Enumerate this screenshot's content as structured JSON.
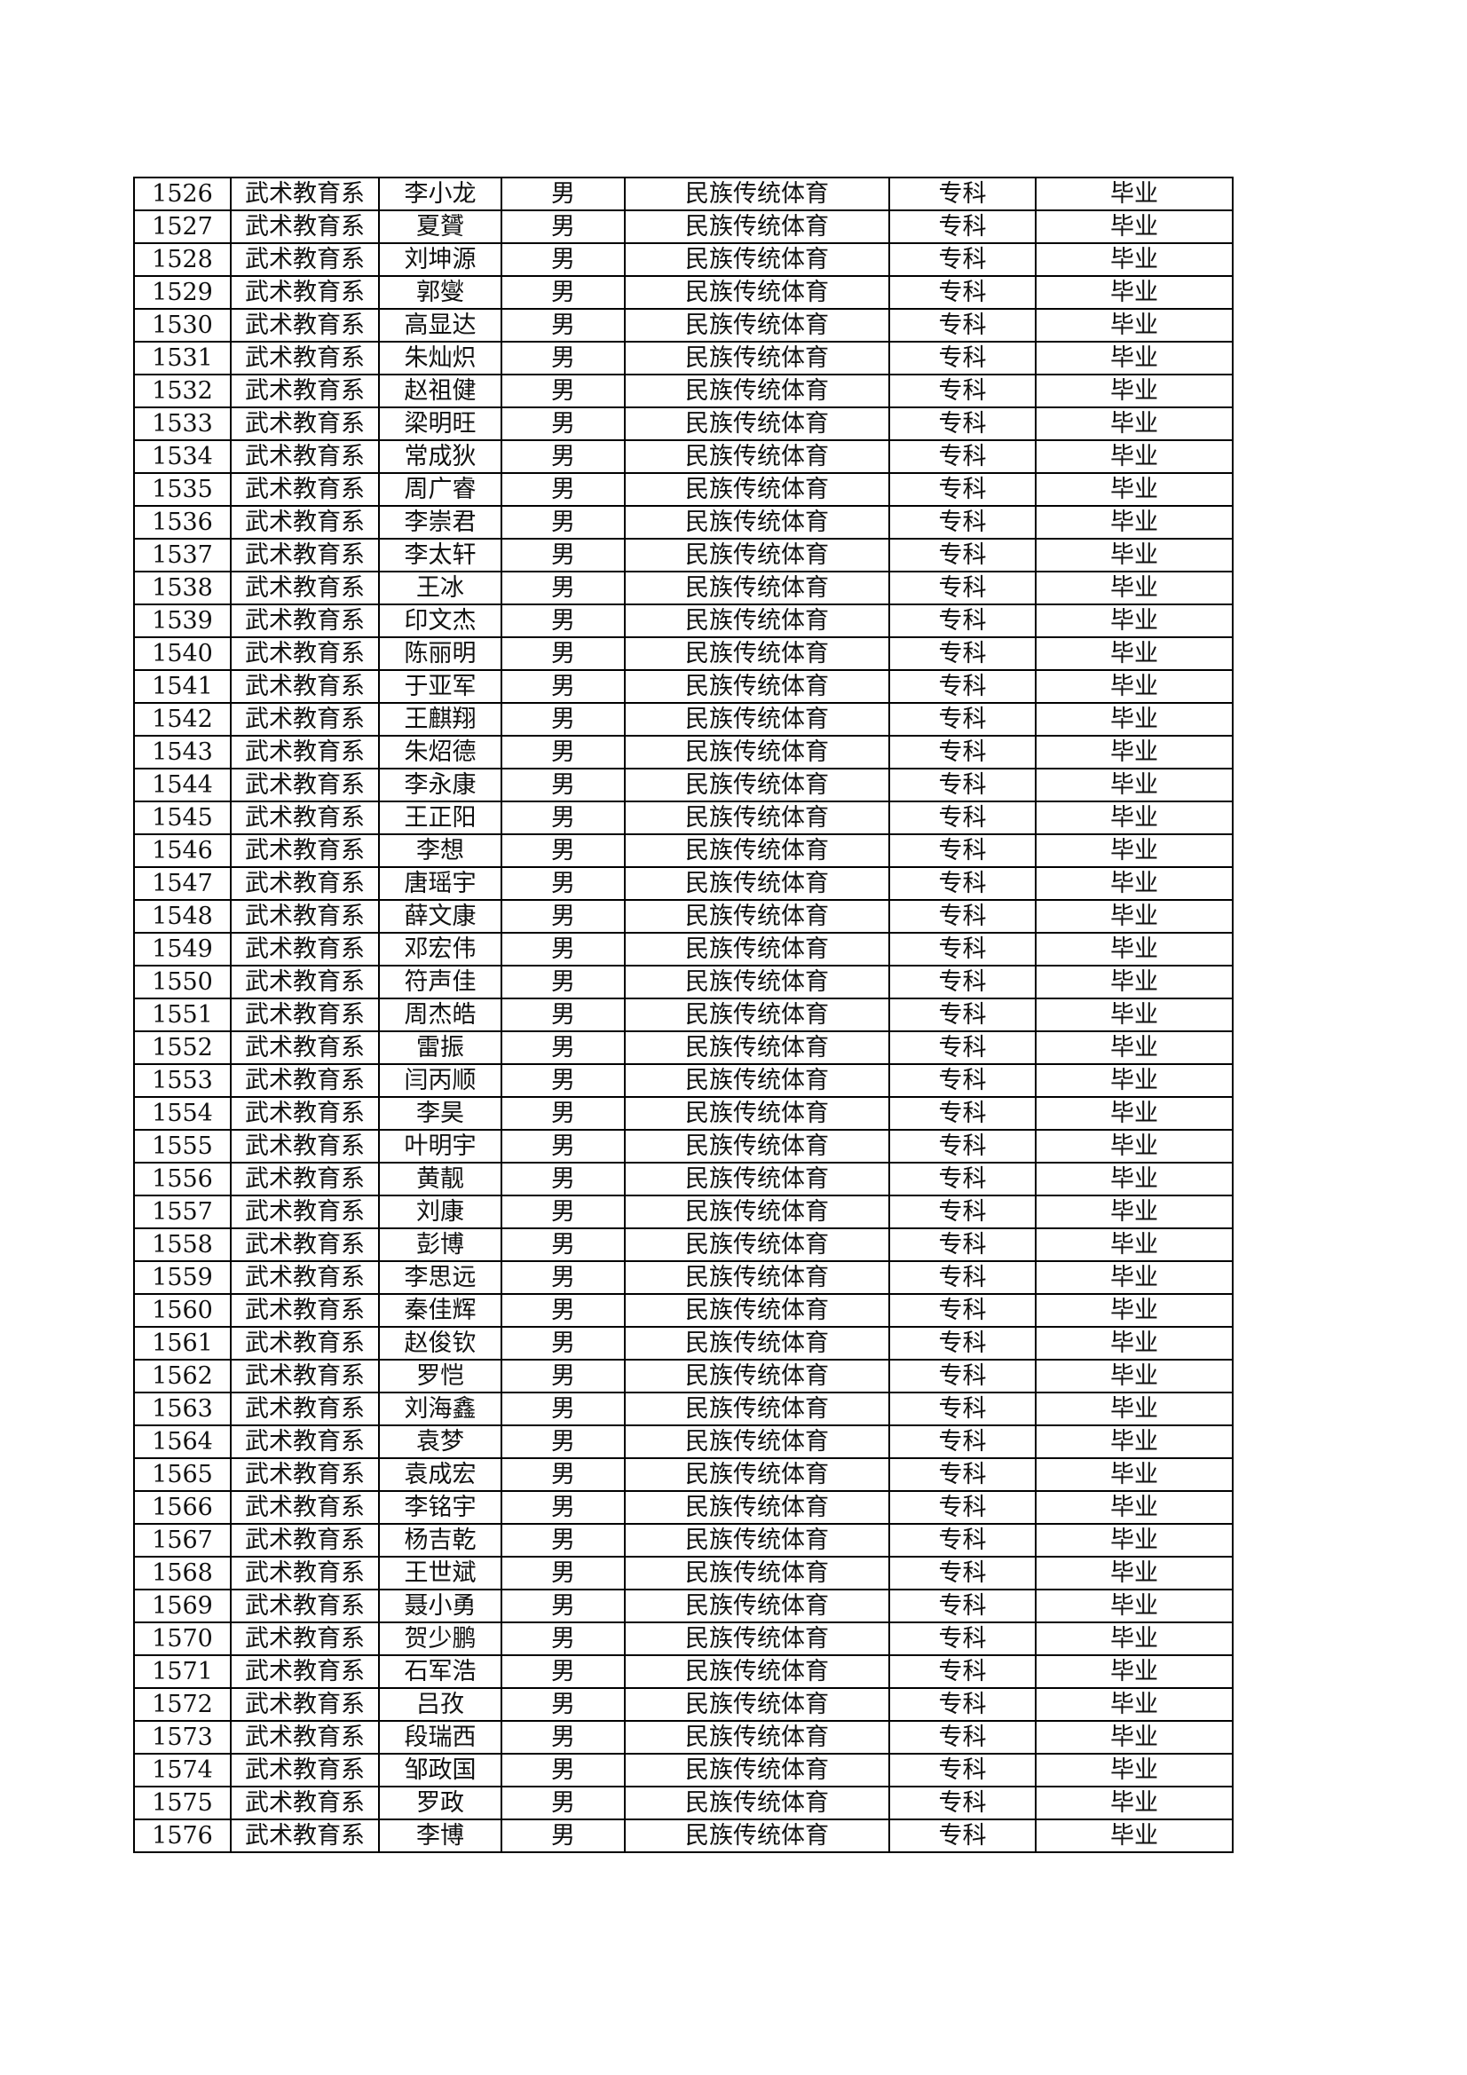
{
  "rows": [
    [
      "1526",
      "武术教育系",
      "李小龙",
      "男",
      "民族传统体育",
      "专科",
      "毕业"
    ],
    [
      "1527",
      "武术教育系",
      "夏贇",
      "男",
      "民族传统体育",
      "专科",
      "毕业"
    ],
    [
      "1528",
      "武术教育系",
      "刘坤源",
      "男",
      "民族传统体育",
      "专科",
      "毕业"
    ],
    [
      "1529",
      "武术教育系",
      "郭燮",
      "男",
      "民族传统体育",
      "专科",
      "毕业"
    ],
    [
      "1530",
      "武术教育系",
      "高显达",
      "男",
      "民族传统体育",
      "专科",
      "毕业"
    ],
    [
      "1531",
      "武术教育系",
      "朱灿炽",
      "男",
      "民族传统体育",
      "专科",
      "毕业"
    ],
    [
      "1532",
      "武术教育系",
      "赵祖健",
      "男",
      "民族传统体育",
      "专科",
      "毕业"
    ],
    [
      "1533",
      "武术教育系",
      "梁明旺",
      "男",
      "民族传统体育",
      "专科",
      "毕业"
    ],
    [
      "1534",
      "武术教育系",
      "常成狄",
      "男",
      "民族传统体育",
      "专科",
      "毕业"
    ],
    [
      "1535",
      "武术教育系",
      "周广睿",
      "男",
      "民族传统体育",
      "专科",
      "毕业"
    ],
    [
      "1536",
      "武术教育系",
      "李崇君",
      "男",
      "民族传统体育",
      "专科",
      "毕业"
    ],
    [
      "1537",
      "武术教育系",
      "李太轩",
      "男",
      "民族传统体育",
      "专科",
      "毕业"
    ],
    [
      "1538",
      "武术教育系",
      "王冰",
      "男",
      "民族传统体育",
      "专科",
      "毕业"
    ],
    [
      "1539",
      "武术教育系",
      "印文杰",
      "男",
      "民族传统体育",
      "专科",
      "毕业"
    ],
    [
      "1540",
      "武术教育系",
      "陈丽明",
      "男",
      "民族传统体育",
      "专科",
      "毕业"
    ],
    [
      "1541",
      "武术教育系",
      "于亚军",
      "男",
      "民族传统体育",
      "专科",
      "毕业"
    ],
    [
      "1542",
      "武术教育系",
      "王麒翔",
      "男",
      "民族传统体育",
      "专科",
      "毕业"
    ],
    [
      "1543",
      "武术教育系",
      "朱炤德",
      "男",
      "民族传统体育",
      "专科",
      "毕业"
    ],
    [
      "1544",
      "武术教育系",
      "李永康",
      "男",
      "民族传统体育",
      "专科",
      "毕业"
    ],
    [
      "1545",
      "武术教育系",
      "王正阳",
      "男",
      "民族传统体育",
      "专科",
      "毕业"
    ],
    [
      "1546",
      "武术教育系",
      "李想",
      "男",
      "民族传统体育",
      "专科",
      "毕业"
    ],
    [
      "1547",
      "武术教育系",
      "唐瑶宇",
      "男",
      "民族传统体育",
      "专科",
      "毕业"
    ],
    [
      "1548",
      "武术教育系",
      "薛文康",
      "男",
      "民族传统体育",
      "专科",
      "毕业"
    ],
    [
      "1549",
      "武术教育系",
      "邓宏伟",
      "男",
      "民族传统体育",
      "专科",
      "毕业"
    ],
    [
      "1550",
      "武术教育系",
      "符声佳",
      "男",
      "民族传统体育",
      "专科",
      "毕业"
    ],
    [
      "1551",
      "武术教育系",
      "周杰皓",
      "男",
      "民族传统体育",
      "专科",
      "毕业"
    ],
    [
      "1552",
      "武术教育系",
      "雷振",
      "男",
      "民族传统体育",
      "专科",
      "毕业"
    ],
    [
      "1553",
      "武术教育系",
      "闫丙顺",
      "男",
      "民族传统体育",
      "专科",
      "毕业"
    ],
    [
      "1554",
      "武术教育系",
      "李昊",
      "男",
      "民族传统体育",
      "专科",
      "毕业"
    ],
    [
      "1555",
      "武术教育系",
      "叶明宇",
      "男",
      "民族传统体育",
      "专科",
      "毕业"
    ],
    [
      "1556",
      "武术教育系",
      "黄靓",
      "男",
      "民族传统体育",
      "专科",
      "毕业"
    ],
    [
      "1557",
      "武术教育系",
      "刘康",
      "男",
      "民族传统体育",
      "专科",
      "毕业"
    ],
    [
      "1558",
      "武术教育系",
      "彭博",
      "男",
      "民族传统体育",
      "专科",
      "毕业"
    ],
    [
      "1559",
      "武术教育系",
      "李思远",
      "男",
      "民族传统体育",
      "专科",
      "毕业"
    ],
    [
      "1560",
      "武术教育系",
      "秦佳辉",
      "男",
      "民族传统体育",
      "专科",
      "毕业"
    ],
    [
      "1561",
      "武术教育系",
      "赵俊钦",
      "男",
      "民族传统体育",
      "专科",
      "毕业"
    ],
    [
      "1562",
      "武术教育系",
      "罗恺",
      "男",
      "民族传统体育",
      "专科",
      "毕业"
    ],
    [
      "1563",
      "武术教育系",
      "刘海鑫",
      "男",
      "民族传统体育",
      "专科",
      "毕业"
    ],
    [
      "1564",
      "武术教育系",
      "袁梦",
      "男",
      "民族传统体育",
      "专科",
      "毕业"
    ],
    [
      "1565",
      "武术教育系",
      "袁成宏",
      "男",
      "民族传统体育",
      "专科",
      "毕业"
    ],
    [
      "1566",
      "武术教育系",
      "李铭宇",
      "男",
      "民族传统体育",
      "专科",
      "毕业"
    ],
    [
      "1567",
      "武术教育系",
      "杨吉乾",
      "男",
      "民族传统体育",
      "专科",
      "毕业"
    ],
    [
      "1568",
      "武术教育系",
      "王世斌",
      "男",
      "民族传统体育",
      "专科",
      "毕业"
    ],
    [
      "1569",
      "武术教育系",
      "聂小勇",
      "男",
      "民族传统体育",
      "专科",
      "毕业"
    ],
    [
      "1570",
      "武术教育系",
      "贺少鹏",
      "男",
      "民族传统体育",
      "专科",
      "毕业"
    ],
    [
      "1571",
      "武术教育系",
      "石军浩",
      "男",
      "民族传统体育",
      "专科",
      "毕业"
    ],
    [
      "1572",
      "武术教育系",
      "吕孜",
      "男",
      "民族传统体育",
      "专科",
      "毕业"
    ],
    [
      "1573",
      "武术教育系",
      "段瑞西",
      "男",
      "民族传统体育",
      "专科",
      "毕业"
    ],
    [
      "1574",
      "武术教育系",
      "邹政国",
      "男",
      "民族传统体育",
      "专科",
      "毕业"
    ],
    [
      "1575",
      "武术教育系",
      "罗政",
      "男",
      "民族传统体育",
      "专科",
      "毕业"
    ],
    [
      "1576",
      "武术教育系",
      "李博",
      "男",
      "民族传统体育",
      "专科",
      "毕业"
    ]
  ]
}
